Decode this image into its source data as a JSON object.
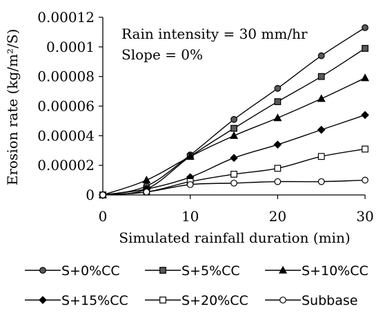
{
  "chart_data": {
    "type": "line",
    "title": "",
    "xlabel": "Simulated rainfall duration (min)",
    "ylabel": "Erosion rate (kg/m²/S)",
    "xlim": [
      0,
      30
    ],
    "ylim": [
      0,
      0.00012
    ],
    "xticks": [
      "0",
      "10",
      "20",
      "30"
    ],
    "yticks": [
      "0",
      "0.00002",
      "0.00004",
      "0.00006",
      "0.00008",
      "0.0001",
      "0.00012"
    ],
    "annotations": [
      "Rain intensity = 30 mm/hr",
      "Slope = 0%"
    ],
    "grid": false,
    "legend_position": "bottom",
    "x": [
      0,
      5,
      10,
      15,
      20,
      25,
      30
    ],
    "series": [
      {
        "name": "S+0%CC",
        "marker": "circle-filled",
        "values": [
          0,
          6e-06,
          2.7e-05,
          5.1e-05,
          7.2e-05,
          9.4e-05,
          0.000113
        ]
      },
      {
        "name": "S+5%CC",
        "marker": "square-filled",
        "values": [
          0,
          4e-06,
          2.6e-05,
          4.5e-05,
          6.3e-05,
          8e-05,
          9.9e-05
        ]
      },
      {
        "name": "S+10%CC",
        "marker": "triangle-filled",
        "values": [
          0,
          1e-05,
          2.6e-05,
          4e-05,
          5.2e-05,
          6.5e-05,
          7.9e-05
        ]
      },
      {
        "name": "S+15%CC",
        "marker": "diamond-filled",
        "values": [
          0,
          4e-06,
          1.2e-05,
          2.5e-05,
          3.4e-05,
          4.4e-05,
          5.4e-05
        ]
      },
      {
        "name": "S+20%CC",
        "marker": "square-open",
        "values": [
          0,
          2e-06,
          9e-06,
          1.4e-05,
          1.8e-05,
          2.6e-05,
          3.1e-05
        ]
      },
      {
        "name": "Subbase",
        "marker": "circle-open",
        "values": [
          0,
          2e-06,
          7e-06,
          8e-06,
          9e-06,
          9e-06,
          1e-05
        ]
      }
    ]
  }
}
